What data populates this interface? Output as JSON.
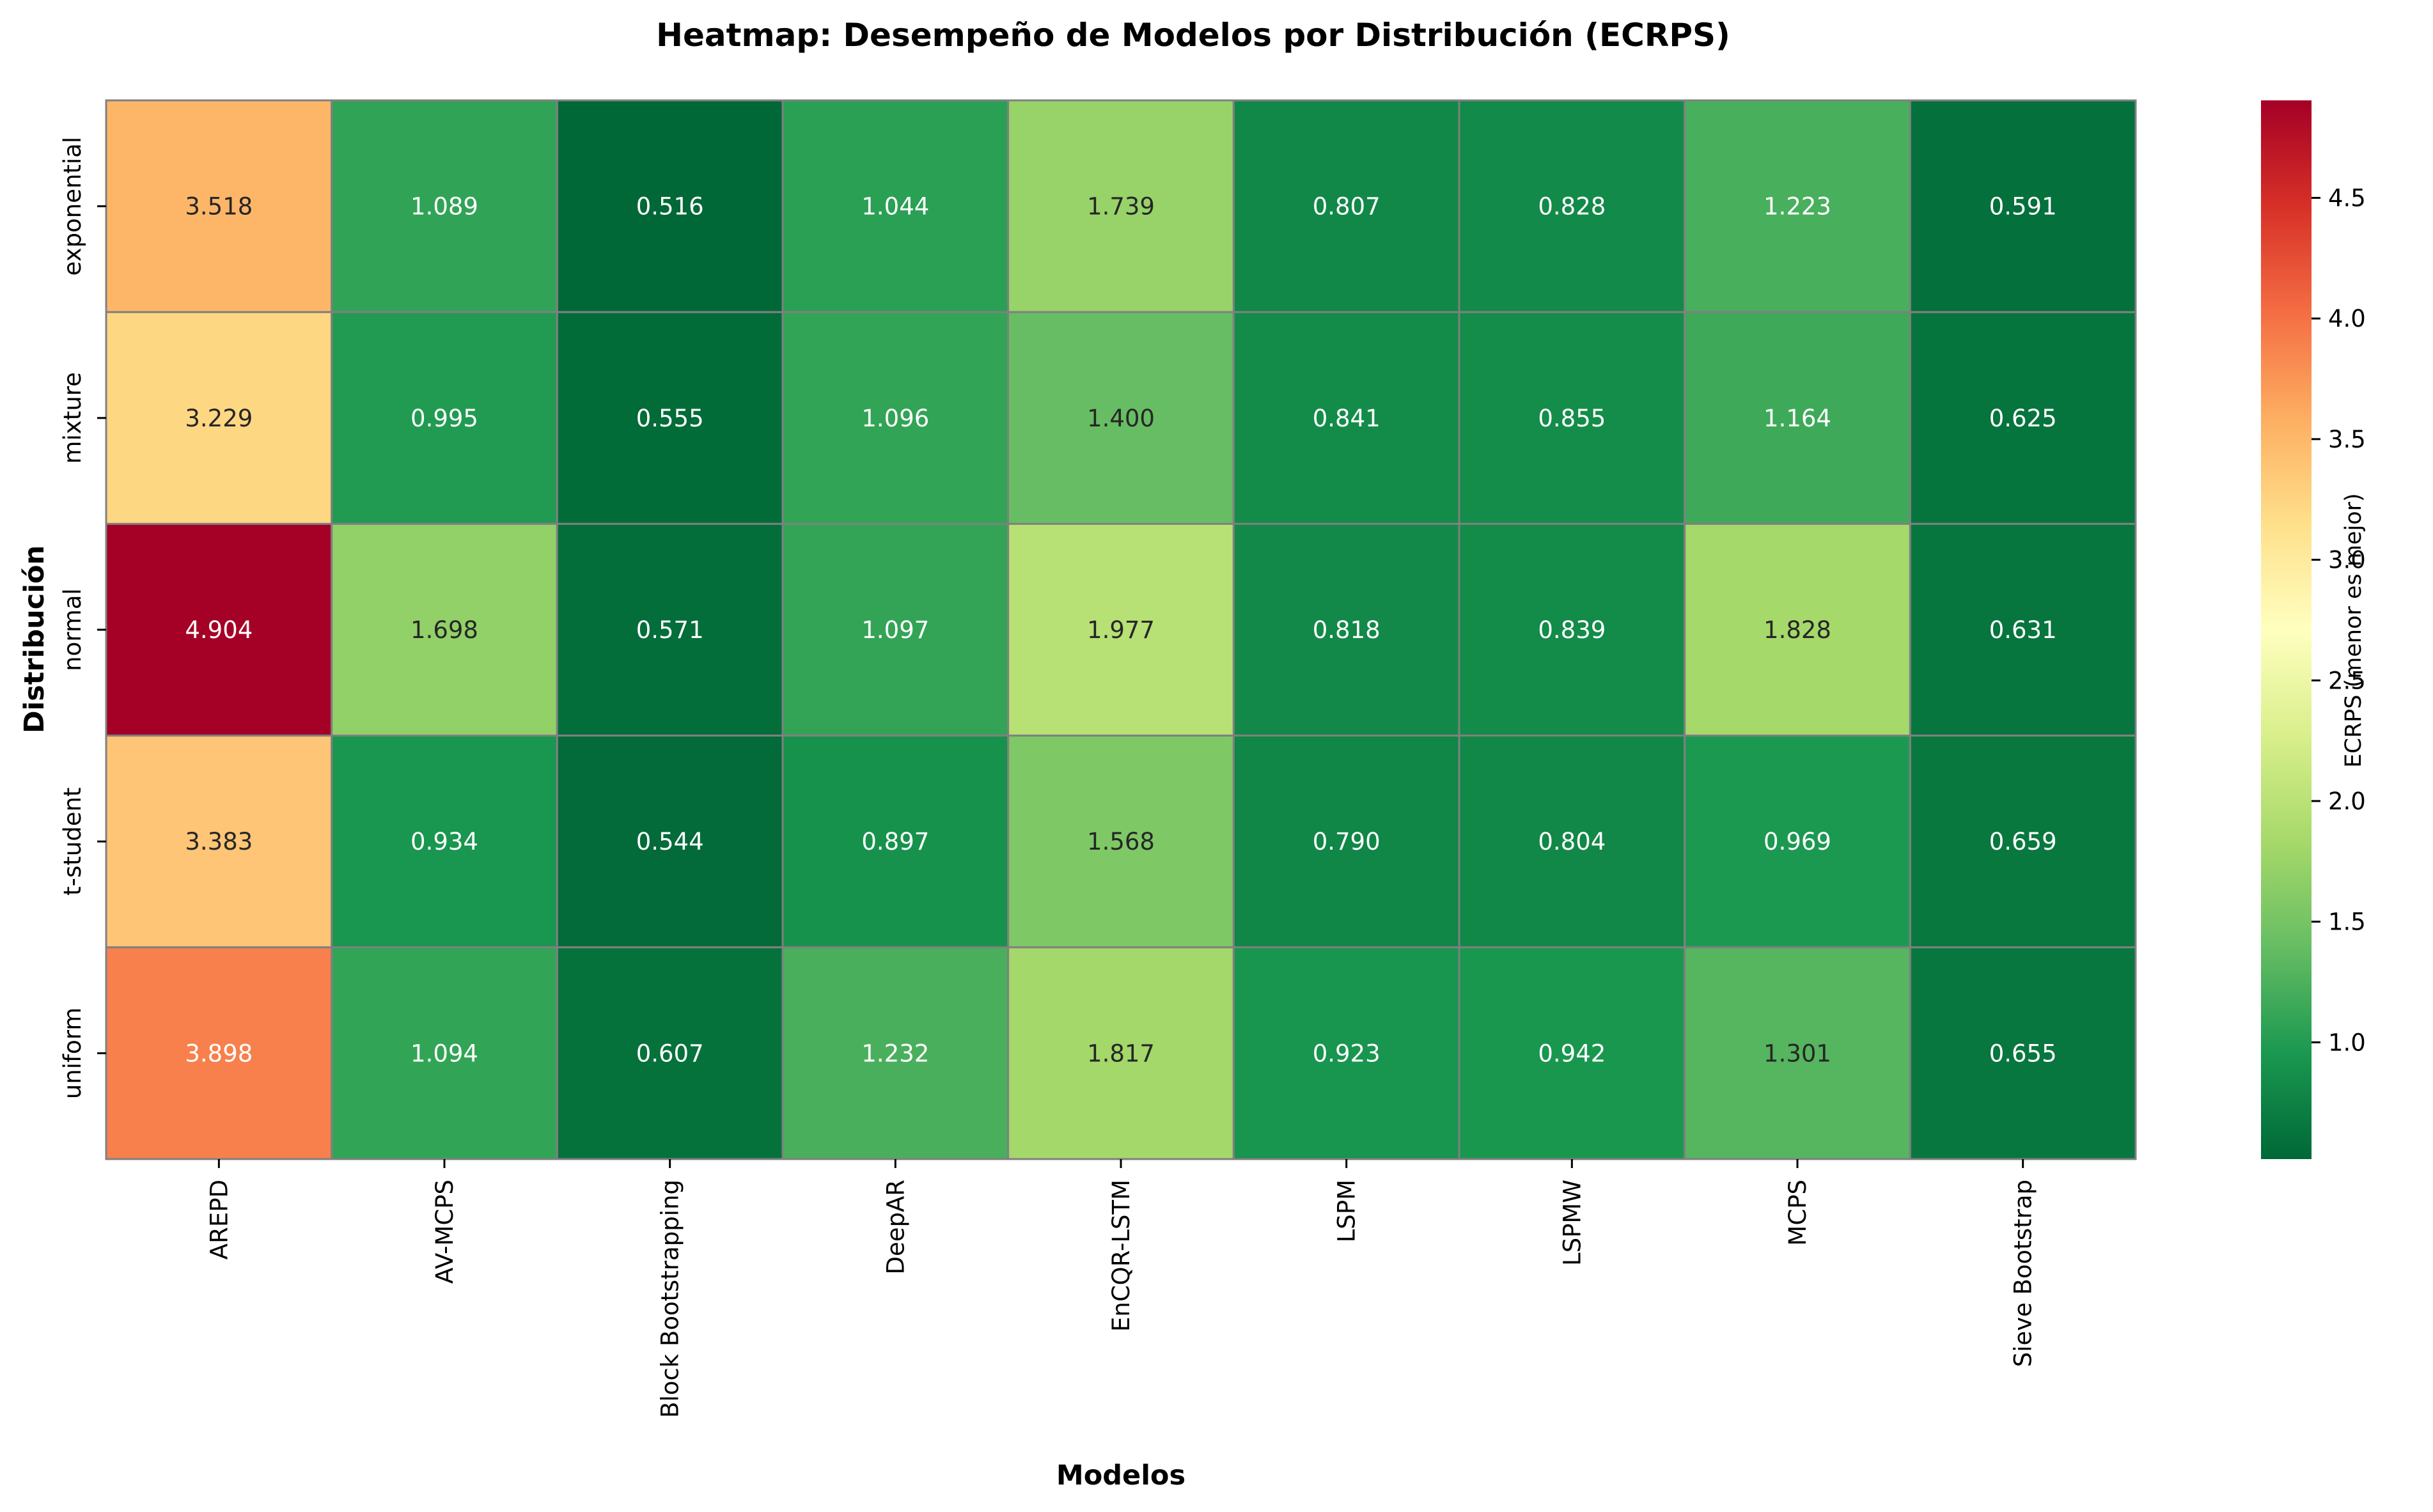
{
  "chart_data": {
    "type": "heatmap",
    "title": "Heatmap: Desempeño de Modelos por Distribución (ECRPS)",
    "xlabel": "Modelos",
    "ylabel": "Distribución",
    "x_categories": [
      "AREPD",
      "AV-MCPS",
      "Block Bootstrapping",
      "DeepAR",
      "EnCQR-LSTM",
      "LSPM",
      "LSPMW",
      "MCPS",
      "Sieve Bootstrap"
    ],
    "y_categories": [
      "exponential",
      "mixture",
      "normal",
      "t-student",
      "uniform"
    ],
    "values": [
      [
        3.518,
        1.089,
        0.516,
        1.044,
        1.739,
        0.807,
        0.828,
        1.223,
        0.591
      ],
      [
        3.229,
        0.995,
        0.555,
        1.096,
        1.4,
        0.841,
        0.855,
        1.164,
        0.625
      ],
      [
        4.904,
        1.698,
        0.571,
        1.097,
        1.977,
        0.818,
        0.839,
        1.828,
        0.631
      ],
      [
        3.383,
        0.934,
        0.544,
        0.897,
        1.568,
        0.79,
        0.804,
        0.969,
        0.659
      ],
      [
        3.898,
        1.094,
        0.607,
        1.232,
        1.817,
        0.923,
        0.942,
        1.301,
        0.655
      ]
    ],
    "value_format_decimals": 3,
    "colorbar": {
      "label": "ECRPS (menor es mejor)",
      "colormap": "RdYlGn_r",
      "vmin": 0.516,
      "vmax": 4.904,
      "ticks": [
        "1.0",
        "1.5",
        "2.0",
        "2.5",
        "3.0",
        "3.5",
        "4.0",
        "4.5"
      ]
    },
    "grid": true,
    "cell_border_color": "#808080"
  }
}
